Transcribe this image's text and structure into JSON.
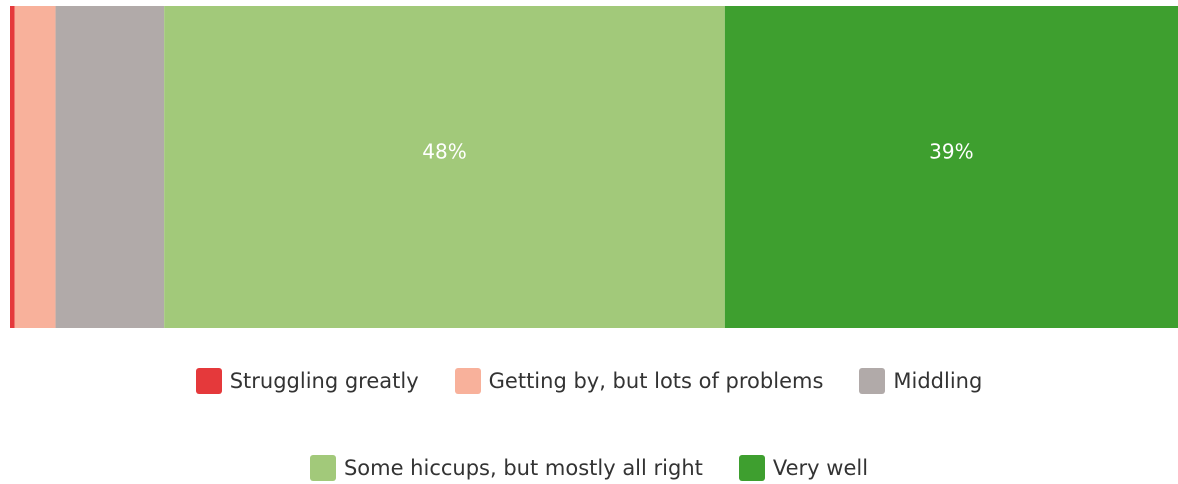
{
  "chart_data": {
    "type": "bar",
    "orientation": "horizontal-stacked",
    "categories": [
      ""
    ],
    "series": [
      {
        "name": "Struggling greatly",
        "values": [
          0.4
        ],
        "color": "#e5393b",
        "label": ""
      },
      {
        "name": "Getting by, but lots of problems",
        "values": [
          3.5
        ],
        "color": "#f8b19b",
        "label": ""
      },
      {
        "name": "Middling",
        "values": [
          9.3
        ],
        "color": "#b1aaa9",
        "label": ""
      },
      {
        "name": "Some hiccups, but mostly all right",
        "values": [
          48
        ],
        "color": "#a2c97a",
        "label": "48%"
      },
      {
        "name": "Very well",
        "values": [
          38.8
        ],
        "color": "#3e9f2f",
        "label": "39%"
      }
    ],
    "xlim": [
      0,
      100
    ],
    "grid": false,
    "legend_position": "bottom"
  }
}
